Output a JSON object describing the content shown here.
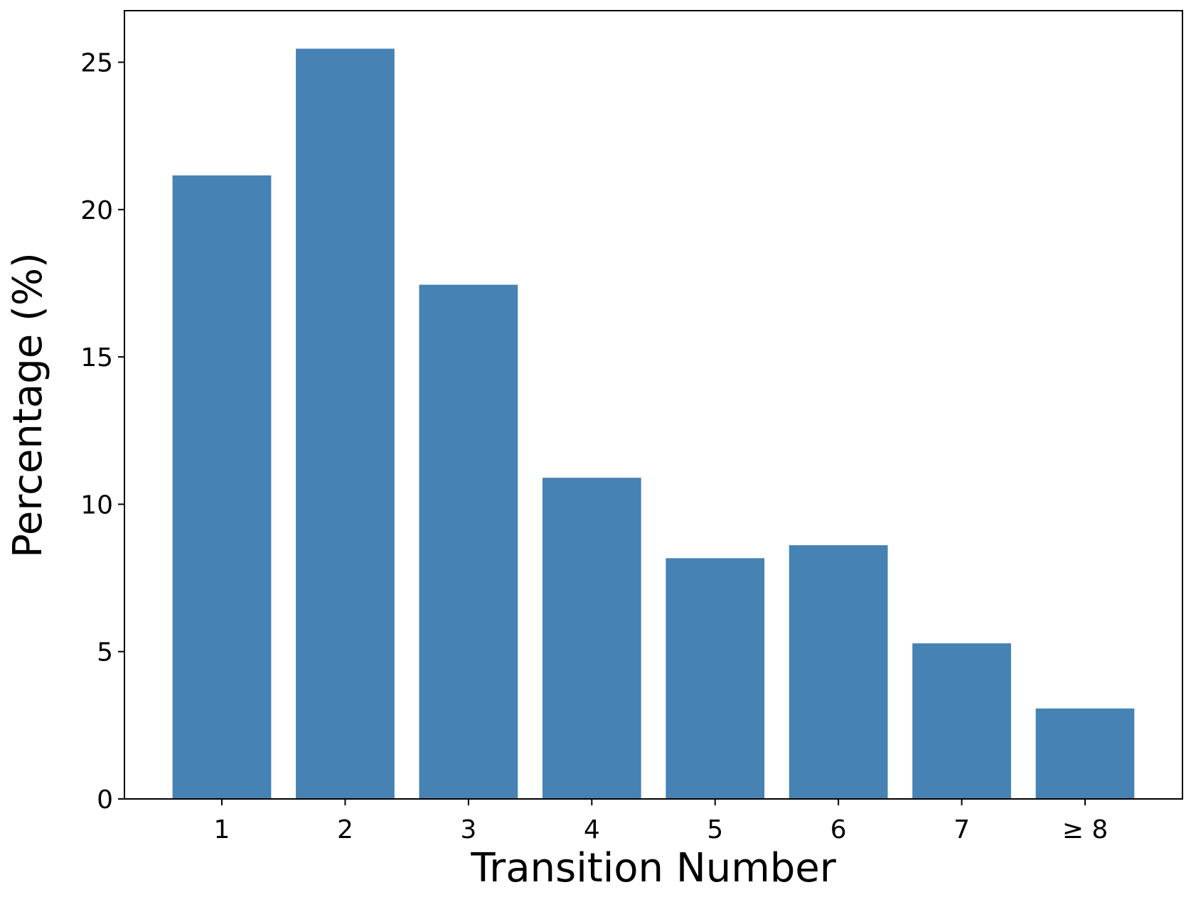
{
  "chart_data": {
    "type": "bar",
    "x_label": "Transition Number",
    "y_label": "Percentage (%)",
    "categories": [
      "1",
      "2",
      "3",
      "4",
      "5",
      "6",
      "7",
      "≥ 8"
    ],
    "values": [
      21.16,
      25.46,
      17.45,
      10.9,
      8.17,
      8.61,
      5.28,
      3.07
    ],
    "color": "#4682b4",
    "ylim": [
      0,
      26.75
    ],
    "yticks": [
      0,
      5,
      10,
      15,
      20,
      25
    ],
    "grid": false
  }
}
